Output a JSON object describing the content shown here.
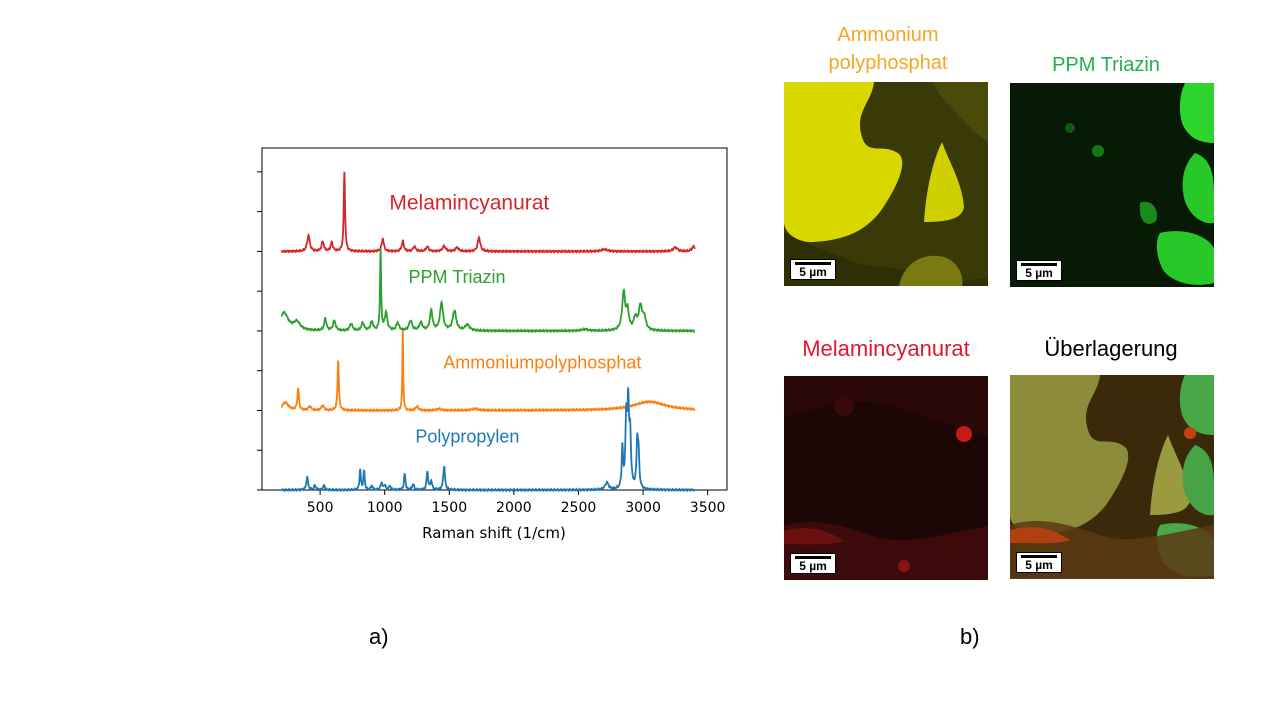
{
  "chart_data": {
    "type": "line",
    "title": "",
    "xlabel": "Raman shift (1/cm)",
    "ylabel": "",
    "xlim": [
      50,
      3650
    ],
    "ylim": [
      0,
      8.6
    ],
    "xticks": [
      500,
      1000,
      1500,
      2000,
      2500,
      3000,
      3500
    ],
    "yticks": [
      0,
      1,
      2,
      3,
      4,
      5,
      6,
      7,
      8
    ],
    "ytick_labels_visible": false,
    "grid": false,
    "legend": "none",
    "series": [
      {
        "name": "Melamincyanurat",
        "color": "#d62728",
        "baseline": 6.0,
        "range": [
          200,
          3400
        ],
        "peaks": [
          [
            410,
            0.4,
            12
          ],
          [
            520,
            0.25,
            10
          ],
          [
            590,
            0.22,
            10
          ],
          [
            688,
            2.0,
            6
          ],
          [
            985,
            0.32,
            10
          ],
          [
            1140,
            0.25,
            10
          ],
          [
            1230,
            0.12,
            12
          ],
          [
            1330,
            0.12,
            12
          ],
          [
            1460,
            0.13,
            14
          ],
          [
            1560,
            0.1,
            14
          ],
          [
            1730,
            0.35,
            12
          ],
          [
            2700,
            0.05,
            30
          ],
          [
            3250,
            0.1,
            20
          ],
          [
            3390,
            0.12,
            15
          ]
        ]
      },
      {
        "name": "PPM Triazin",
        "color": "#2ca02c",
        "baseline": 4.0,
        "range": [
          200,
          3400
        ],
        "peaks": [
          [
            220,
            0.45,
            40
          ],
          [
            320,
            0.2,
            30
          ],
          [
            540,
            0.3,
            10
          ],
          [
            610,
            0.25,
            12
          ],
          [
            740,
            0.18,
            12
          ],
          [
            830,
            0.2,
            12
          ],
          [
            900,
            0.22,
            12
          ],
          [
            968,
            2.0,
            5
          ],
          [
            1010,
            0.45,
            12
          ],
          [
            1100,
            0.2,
            12
          ],
          [
            1200,
            0.25,
            14
          ],
          [
            1280,
            0.2,
            14
          ],
          [
            1360,
            0.5,
            12
          ],
          [
            1440,
            0.7,
            14
          ],
          [
            1540,
            0.5,
            16
          ],
          [
            1640,
            0.15,
            20
          ],
          [
            2550,
            0.04,
            30
          ],
          [
            2850,
            0.95,
            14
          ],
          [
            2880,
            0.45,
            12
          ],
          [
            2940,
            0.3,
            14
          ],
          [
            2980,
            0.6,
            16
          ],
          [
            3010,
            0.3,
            14
          ]
        ]
      },
      {
        "name": "Ammoniumpolyphosphat",
        "color": "#ff7f0e",
        "baseline": 2.0,
        "range": [
          200,
          3400
        ],
        "peaks": [
          [
            230,
            0.2,
            30
          ],
          [
            330,
            0.55,
            7
          ],
          [
            420,
            0.1,
            12
          ],
          [
            520,
            0.12,
            12
          ],
          [
            640,
            1.25,
            6
          ],
          [
            1140,
            2.0,
            4
          ],
          [
            1250,
            0.1,
            12
          ],
          [
            1420,
            0.04,
            20
          ],
          [
            1700,
            0.04,
            30
          ],
          [
            3050,
            0.22,
            150
          ]
        ]
      },
      {
        "name": "Polypropylen",
        "color": "#1f77b4",
        "baseline": 0.0,
        "range": [
          200,
          3400
        ],
        "peaks": [
          [
            400,
            0.32,
            8
          ],
          [
            460,
            0.12,
            8
          ],
          [
            530,
            0.12,
            8
          ],
          [
            810,
            0.5,
            6
          ],
          [
            840,
            0.48,
            6
          ],
          [
            900,
            0.1,
            8
          ],
          [
            975,
            0.18,
            8
          ],
          [
            1000,
            0.12,
            8
          ],
          [
            1040,
            0.1,
            8
          ],
          [
            1155,
            0.4,
            7
          ],
          [
            1220,
            0.15,
            8
          ],
          [
            1330,
            0.45,
            7
          ],
          [
            1360,
            0.22,
            8
          ],
          [
            1460,
            0.6,
            8
          ],
          [
            2720,
            0.18,
            16
          ],
          [
            2840,
            1.0,
            6
          ],
          [
            2870,
            1.7,
            8
          ],
          [
            2885,
            1.9,
            7
          ],
          [
            2900,
            1.3,
            8
          ],
          [
            2955,
            1.1,
            7
          ],
          [
            2965,
            0.8,
            7
          ]
        ]
      }
    ]
  },
  "panel_a": {
    "label": "a)"
  },
  "panel_b": {
    "label": "b)",
    "images": [
      {
        "title_lines": [
          "Ammonium",
          "polyphosphat"
        ],
        "title_color": "#f5a623",
        "tint": "#e8e400",
        "scalebar": "5 µm"
      },
      {
        "title_lines": [
          "PPM Triazin"
        ],
        "title_color": "#22b14c",
        "tint": "#22e000",
        "scalebar": "5 µm"
      },
      {
        "title_lines": [
          "Melamincyanurat"
        ],
        "title_color": "#e0182f",
        "tint": "#e00000",
        "scalebar": "5 µm"
      },
      {
        "title_lines": [
          "Überlagerung"
        ],
        "title_color": "#000000",
        "tint": "#8a8a2a",
        "scalebar": "5 µm"
      }
    ]
  }
}
